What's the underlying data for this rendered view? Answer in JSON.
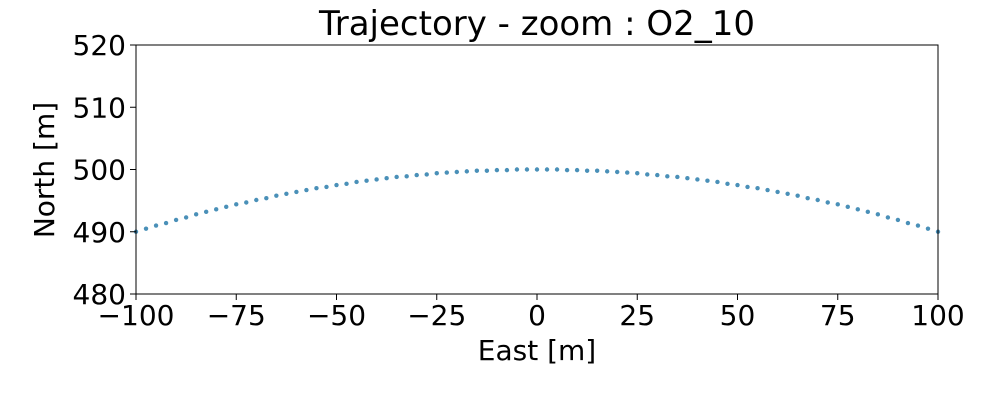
{
  "chart_data": {
    "type": "scatter",
    "title": "Trajectory - zoom : O2_10",
    "xlabel": "East [m]",
    "ylabel": "North [m]",
    "xlim": [
      -100,
      100
    ],
    "ylim": [
      480,
      520
    ],
    "xticks": [
      -100,
      -75,
      -50,
      -25,
      0,
      25,
      50,
      75,
      100
    ],
    "xtick_labels": [
      "−100",
      "−75",
      "−50",
      "−25",
      "0",
      "25",
      "50",
      "75",
      "100"
    ],
    "yticks": [
      480,
      490,
      500,
      510,
      520
    ],
    "ytick_labels": [
      "480",
      "490",
      "500",
      "510",
      "520"
    ],
    "grid": false,
    "series": [
      {
        "color": "#4a90b8",
        "x": [
          -100,
          -97.5,
          -95,
          -92.5,
          -90,
          -87.5,
          -85,
          -82.5,
          -80,
          -77.5,
          -75,
          -72.5,
          -70,
          -67.5,
          -65,
          -62.5,
          -60,
          -57.5,
          -55,
          -52.5,
          -50,
          -47.5,
          -45,
          -42.5,
          -40,
          -37.5,
          -35,
          -32.5,
          -30,
          -27.5,
          -25,
          -22.5,
          -20,
          -17.5,
          -15,
          -12.5,
          -10,
          -7.5,
          -5,
          -2.5,
          0,
          2.5,
          5,
          7.5,
          10,
          12.5,
          15,
          17.5,
          20,
          22.5,
          25,
          27.5,
          30,
          32.5,
          35,
          37.5,
          40,
          42.5,
          45,
          47.5,
          50,
          52.5,
          55,
          57.5,
          60,
          62.5,
          65,
          67.5,
          70,
          72.5,
          75,
          77.5,
          80,
          82.5,
          85,
          87.5,
          90,
          92.5,
          95,
          97.5,
          100
        ],
        "y": [
          490.0,
          490.5,
          491.0,
          491.4,
          491.9,
          492.3,
          492.8,
          493.2,
          493.6,
          494.0,
          494.4,
          494.7,
          495.1,
          495.4,
          495.8,
          496.1,
          496.4,
          496.7,
          497.0,
          497.2,
          497.5,
          497.7,
          498.0,
          498.2,
          498.4,
          498.6,
          498.8,
          498.9,
          499.1,
          499.2,
          499.4,
          499.5,
          499.6,
          499.7,
          499.8,
          499.8,
          499.9,
          499.9,
          500.0,
          500.0,
          500.0,
          500.0,
          500.0,
          499.9,
          499.9,
          499.8,
          499.8,
          499.7,
          499.6,
          499.5,
          499.4,
          499.2,
          499.1,
          498.9,
          498.8,
          498.6,
          498.4,
          498.2,
          498.0,
          497.7,
          497.5,
          497.2,
          497.0,
          496.7,
          496.4,
          496.1,
          495.8,
          495.4,
          495.1,
          494.7,
          494.4,
          494.0,
          493.6,
          493.2,
          492.8,
          492.3,
          491.9,
          491.4,
          491.0,
          490.5,
          490.0
        ]
      }
    ]
  }
}
